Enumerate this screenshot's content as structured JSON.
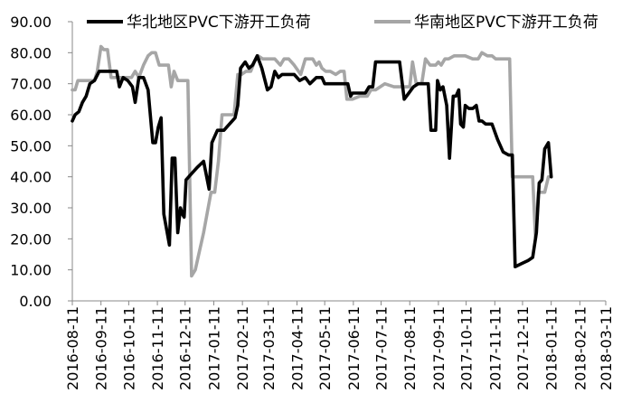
{
  "chart_data": {
    "type": "line",
    "title": "",
    "xlabel": "",
    "ylabel": "",
    "ylim": [
      0,
      90
    ],
    "y_ticks": [
      "0.00",
      "10.00",
      "20.00",
      "30.00",
      "40.00",
      "50.00",
      "60.00",
      "70.00",
      "80.00",
      "90.00"
    ],
    "x_ticks": [
      "2016-08-11",
      "2016-09-11",
      "2016-10-11",
      "2016-11-11",
      "2016-12-11",
      "2017-01-11",
      "2017-02-11",
      "2017-03-11",
      "2017-04-11",
      "2017-05-11",
      "2017-06-11",
      "2017-07-11",
      "2017-08-11",
      "2017-09-11",
      "2017-10-11",
      "2017-11-11",
      "2017-12-11",
      "2018-01-11",
      "2018-02-11",
      "2018-03-11"
    ],
    "legend_position": "top",
    "grid": false,
    "series": [
      {
        "name": "华北地区PVC下游开工负荷",
        "color": "#000000",
        "points": [
          [
            "2016-08-11",
            58
          ],
          [
            "2016-08-14",
            60
          ],
          [
            "2016-08-18",
            61
          ],
          [
            "2016-08-22",
            64
          ],
          [
            "2016-08-26",
            66
          ],
          [
            "2016-08-30",
            70
          ],
          [
            "2016-09-04",
            71
          ],
          [
            "2016-09-09",
            74
          ],
          [
            "2016-09-14",
            74
          ],
          [
            "2016-09-20",
            74
          ],
          [
            "2016-09-28",
            74
          ],
          [
            "2016-10-01",
            69
          ],
          [
            "2016-10-05",
            72
          ],
          [
            "2016-10-10",
            71
          ],
          [
            "2016-10-15",
            69
          ],
          [
            "2016-10-18",
            64
          ],
          [
            "2016-10-22",
            72
          ],
          [
            "2016-10-27",
            72
          ],
          [
            "2016-11-01",
            68
          ],
          [
            "2016-11-06",
            51
          ],
          [
            "2016-11-09",
            51
          ],
          [
            "2016-11-12",
            56
          ],
          [
            "2016-11-15",
            59
          ],
          [
            "2016-11-18",
            28
          ],
          [
            "2016-11-21",
            23
          ],
          [
            "2016-11-24",
            18
          ],
          [
            "2016-11-27",
            46
          ],
          [
            "2016-11-30",
            46
          ],
          [
            "2016-12-03",
            22
          ],
          [
            "2016-12-06",
            30
          ],
          [
            "2016-12-08",
            28
          ],
          [
            "2016-12-10",
            27
          ],
          [
            "2016-12-12",
            39
          ],
          [
            "2016-12-18",
            41
          ],
          [
            "2016-12-24",
            43
          ],
          [
            "2016-12-31",
            45
          ],
          [
            "2017-01-06",
            36
          ],
          [
            "2017-01-09",
            51
          ],
          [
            "2017-01-15",
            55
          ],
          [
            "2017-01-22",
            55
          ],
          [
            "2017-01-28",
            57
          ],
          [
            "2017-02-03",
            59
          ],
          [
            "2017-02-06",
            63
          ],
          [
            "2017-02-09",
            75
          ],
          [
            "2017-02-14",
            77
          ],
          [
            "2017-02-18",
            75
          ],
          [
            "2017-02-22",
            76
          ],
          [
            "2017-02-27",
            79
          ],
          [
            "2017-03-04",
            75
          ],
          [
            "2017-03-10",
            68
          ],
          [
            "2017-03-14",
            69
          ],
          [
            "2017-03-18",
            74
          ],
          [
            "2017-03-22",
            72
          ],
          [
            "2017-03-26",
            73
          ],
          [
            "2017-04-02",
            73
          ],
          [
            "2017-04-08",
            73
          ],
          [
            "2017-04-14",
            71
          ],
          [
            "2017-04-20",
            72
          ],
          [
            "2017-04-25",
            70
          ],
          [
            "2017-05-02",
            72
          ],
          [
            "2017-05-08",
            72
          ],
          [
            "2017-05-11",
            70
          ],
          [
            "2017-05-20",
            70
          ],
          [
            "2017-05-28",
            70
          ],
          [
            "2017-06-05",
            70
          ],
          [
            "2017-06-08",
            66
          ],
          [
            "2017-06-10",
            67
          ],
          [
            "2017-06-18",
            67
          ],
          [
            "2017-06-24",
            67
          ],
          [
            "2017-06-28",
            69
          ],
          [
            "2017-07-02",
            69
          ],
          [
            "2017-07-05",
            77
          ],
          [
            "2017-07-12",
            77
          ],
          [
            "2017-07-20",
            77
          ],
          [
            "2017-07-28",
            77
          ],
          [
            "2017-07-31",
            77
          ],
          [
            "2017-08-05",
            65
          ],
          [
            "2017-08-10",
            67
          ],
          [
            "2017-08-15",
            69
          ],
          [
            "2017-08-20",
            70
          ],
          [
            "2017-08-26",
            70
          ],
          [
            "2017-08-31",
            70
          ],
          [
            "2017-09-03",
            55
          ],
          [
            "2017-09-08",
            55
          ],
          [
            "2017-09-10",
            71
          ],
          [
            "2017-09-13",
            68
          ],
          [
            "2017-09-16",
            69
          ],
          [
            "2017-09-20",
            63
          ],
          [
            "2017-09-23",
            46
          ],
          [
            "2017-09-27",
            66
          ],
          [
            "2017-09-30",
            66
          ],
          [
            "2017-10-03",
            68
          ],
          [
            "2017-10-05",
            57
          ],
          [
            "2017-10-08",
            56
          ],
          [
            "2017-10-10",
            63
          ],
          [
            "2017-10-14",
            62
          ],
          [
            "2017-10-18",
            62
          ],
          [
            "2017-10-22",
            63
          ],
          [
            "2017-10-25",
            58
          ],
          [
            "2017-10-28",
            58
          ],
          [
            "2017-11-01",
            57
          ],
          [
            "2017-11-08",
            57
          ],
          [
            "2017-11-14",
            52
          ],
          [
            "2017-11-20",
            48
          ],
          [
            "2017-11-26",
            47
          ],
          [
            "2017-11-30",
            47
          ],
          [
            "2017-12-03",
            11
          ],
          [
            "2017-12-10",
            12
          ],
          [
            "2017-12-17",
            13
          ],
          [
            "2017-12-22",
            14
          ],
          [
            "2017-12-26",
            22
          ],
          [
            "2017-12-29",
            38
          ],
          [
            "2018-01-01",
            39
          ],
          [
            "2018-01-04",
            49
          ],
          [
            "2018-01-08",
            51
          ],
          [
            "2018-01-11",
            40
          ]
        ]
      },
      {
        "name": "华南地区PVC下游开工负荷",
        "color": "#a6a6a6",
        "points": [
          [
            "2016-08-11",
            68
          ],
          [
            "2016-08-14",
            68
          ],
          [
            "2016-08-17",
            71
          ],
          [
            "2016-08-26",
            71
          ],
          [
            "2016-09-04",
            71
          ],
          [
            "2016-09-07",
            74
          ],
          [
            "2016-09-11",
            82
          ],
          [
            "2016-09-14",
            81
          ],
          [
            "2016-09-18",
            81
          ],
          [
            "2016-09-22",
            72
          ],
          [
            "2016-10-01",
            72
          ],
          [
            "2016-10-08",
            72
          ],
          [
            "2016-10-14",
            72
          ],
          [
            "2016-10-18",
            74
          ],
          [
            "2016-10-22",
            72
          ],
          [
            "2016-10-27",
            76
          ],
          [
            "2016-11-01",
            79
          ],
          [
            "2016-11-05",
            80
          ],
          [
            "2016-11-09",
            80
          ],
          [
            "2016-11-13",
            76
          ],
          [
            "2016-11-18",
            76
          ],
          [
            "2016-11-23",
            76
          ],
          [
            "2016-11-26",
            69
          ],
          [
            "2016-11-29",
            74
          ],
          [
            "2016-12-03",
            71
          ],
          [
            "2016-12-11",
            71
          ],
          [
            "2016-12-14",
            71
          ],
          [
            "2016-12-18",
            8
          ],
          [
            "2016-12-22",
            10
          ],
          [
            "2016-12-31",
            22
          ],
          [
            "2017-01-08",
            35
          ],
          [
            "2017-01-12",
            35
          ],
          [
            "2017-01-16",
            45
          ],
          [
            "2017-01-20",
            60
          ],
          [
            "2017-01-26",
            60
          ],
          [
            "2017-02-02",
            60
          ],
          [
            "2017-02-06",
            73
          ],
          [
            "2017-02-10",
            73
          ],
          [
            "2017-02-15",
            74
          ],
          [
            "2017-02-20",
            74
          ],
          [
            "2017-02-24",
            77
          ],
          [
            "2017-02-28",
            79
          ],
          [
            "2017-03-05",
            78
          ],
          [
            "2017-03-11",
            78
          ],
          [
            "2017-03-18",
            78
          ],
          [
            "2017-03-24",
            76
          ],
          [
            "2017-03-28",
            78
          ],
          [
            "2017-04-02",
            78
          ],
          [
            "2017-04-08",
            76
          ],
          [
            "2017-04-15",
            73
          ],
          [
            "2017-04-20",
            78
          ],
          [
            "2017-04-28",
            78
          ],
          [
            "2017-05-02",
            76
          ],
          [
            "2017-05-05",
            77
          ],
          [
            "2017-05-08",
            75
          ],
          [
            "2017-05-12",
            74
          ],
          [
            "2017-05-17",
            74
          ],
          [
            "2017-05-23",
            73
          ],
          [
            "2017-05-28",
            74
          ],
          [
            "2017-06-01",
            74
          ],
          [
            "2017-06-04",
            65
          ],
          [
            "2017-06-10",
            65
          ],
          [
            "2017-06-18",
            66
          ],
          [
            "2017-06-26",
            66
          ],
          [
            "2017-06-30",
            68
          ],
          [
            "2017-07-05",
            68
          ],
          [
            "2017-07-10",
            69
          ],
          [
            "2017-07-15",
            70
          ],
          [
            "2017-07-25",
            69
          ],
          [
            "2017-08-04",
            69
          ],
          [
            "2017-08-11",
            69
          ],
          [
            "2017-08-14",
            77
          ],
          [
            "2017-08-18",
            70
          ],
          [
            "2017-08-24",
            70
          ],
          [
            "2017-08-28",
            78
          ],
          [
            "2017-09-02",
            76
          ],
          [
            "2017-09-08",
            76
          ],
          [
            "2017-09-11",
            77
          ],
          [
            "2017-09-14",
            76
          ],
          [
            "2017-09-18",
            78
          ],
          [
            "2017-09-22",
            78
          ],
          [
            "2017-09-28",
            79
          ],
          [
            "2017-10-03",
            79
          ],
          [
            "2017-10-10",
            79
          ],
          [
            "2017-10-18",
            78
          ],
          [
            "2017-10-24",
            78
          ],
          [
            "2017-10-28",
            80
          ],
          [
            "2017-11-03",
            79
          ],
          [
            "2017-11-08",
            79
          ],
          [
            "2017-11-12",
            78
          ],
          [
            "2017-11-20",
            78
          ],
          [
            "2017-11-24",
            78
          ],
          [
            "2017-11-27",
            78
          ],
          [
            "2017-11-30",
            40
          ],
          [
            "2017-12-06",
            40
          ],
          [
            "2017-12-14",
            40
          ],
          [
            "2017-12-22",
            40
          ],
          [
            "2017-12-25",
            20
          ],
          [
            "2017-12-28",
            35
          ],
          [
            "2018-01-01",
            35
          ],
          [
            "2018-01-04",
            35
          ],
          [
            "2018-01-08",
            40
          ]
        ]
      }
    ]
  }
}
